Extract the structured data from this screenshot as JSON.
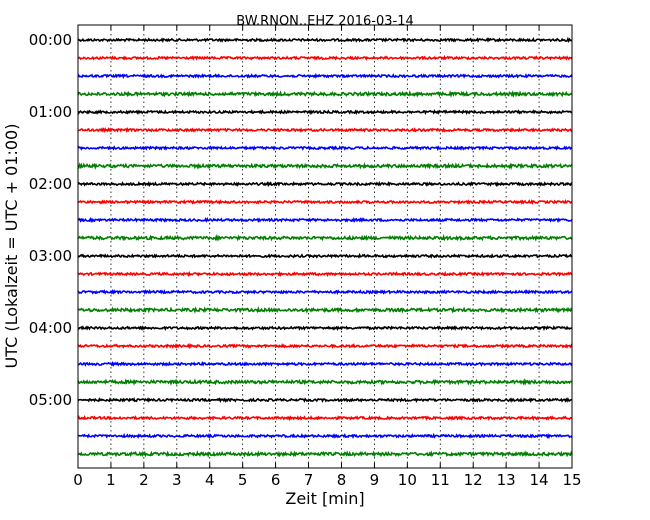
{
  "chart_data": {
    "type": "line",
    "title": "BW.RNON..EHZ 2016-03-14",
    "xlabel": "Zeit  [min]",
    "ylabel": "UTC (Lokalzeit = UTC + 01:00)",
    "xlim": [
      0,
      15
    ],
    "xticks": [
      "0",
      "1",
      "2",
      "3",
      "4",
      "5",
      "6",
      "7",
      "8",
      "9",
      "10",
      "11",
      "12",
      "13",
      "14",
      "15"
    ],
    "yticks": [
      "00:00",
      "01:00",
      "02:00",
      "03:00",
      "04:00",
      "05:00"
    ],
    "grid": true,
    "trace_colors": [
      "#000000",
      "#ff0000",
      "#0000ff",
      "#008000"
    ],
    "series": [
      {
        "start": "00:00",
        "color": "#000000"
      },
      {
        "start": "00:15",
        "color": "#ff0000"
      },
      {
        "start": "00:30",
        "color": "#0000ff"
      },
      {
        "start": "00:45",
        "color": "#008000"
      },
      {
        "start": "01:00",
        "color": "#000000"
      },
      {
        "start": "01:15",
        "color": "#ff0000"
      },
      {
        "start": "01:30",
        "color": "#0000ff"
      },
      {
        "start": "01:45",
        "color": "#008000"
      },
      {
        "start": "02:00",
        "color": "#000000"
      },
      {
        "start": "02:15",
        "color": "#ff0000"
      },
      {
        "start": "02:30",
        "color": "#0000ff"
      },
      {
        "start": "02:45",
        "color": "#008000"
      },
      {
        "start": "03:00",
        "color": "#000000"
      },
      {
        "start": "03:15",
        "color": "#ff0000"
      },
      {
        "start": "03:30",
        "color": "#0000ff"
      },
      {
        "start": "03:45",
        "color": "#008000"
      },
      {
        "start": "04:00",
        "color": "#000000"
      },
      {
        "start": "04:15",
        "color": "#ff0000"
      },
      {
        "start": "04:30",
        "color": "#0000ff"
      },
      {
        "start": "04:45",
        "color": "#008000"
      },
      {
        "start": "05:00",
        "color": "#000000"
      },
      {
        "start": "05:15",
        "color": "#ff0000"
      },
      {
        "start": "05:30",
        "color": "#0000ff"
      },
      {
        "start": "05:45",
        "color": "#008000"
      }
    ]
  }
}
